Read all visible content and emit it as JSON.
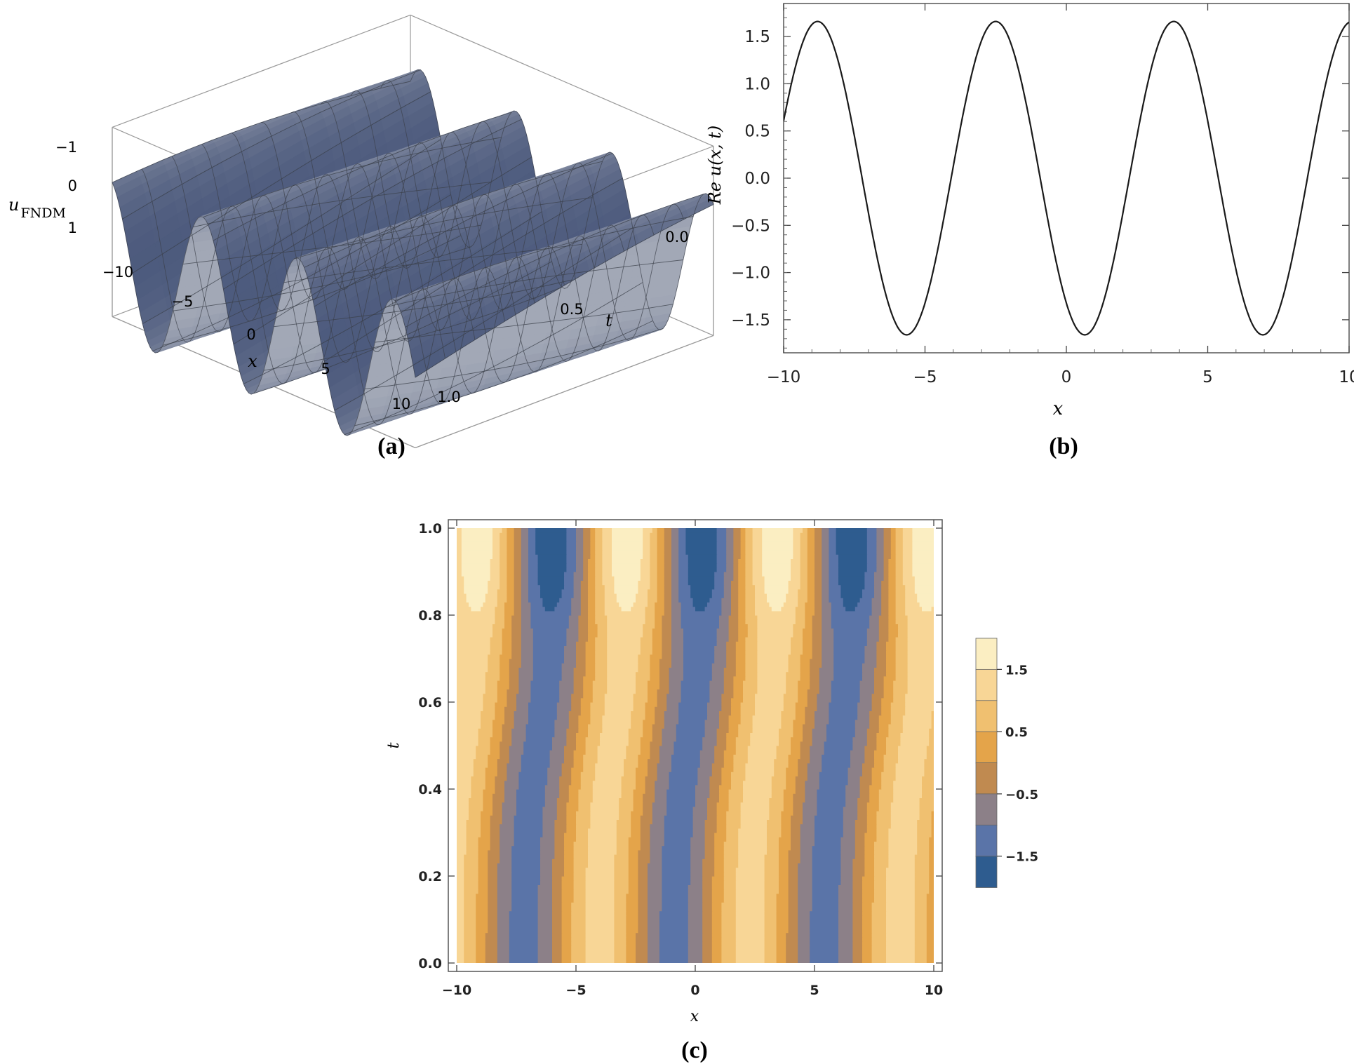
{
  "figure": {
    "captions": [
      "(a)",
      "(b)",
      "(c)"
    ]
  },
  "chart_data": [
    {
      "id": "a",
      "type": "surface3d",
      "zlabel": "u",
      "zlabel_sub": "FNDM",
      "xlabel": "x",
      "ylabel": "t",
      "x_ticks": [
        "−10",
        "−5",
        "0",
        "5",
        "10"
      ],
      "t_ticks": [
        "0.0",
        "0.5",
        "1.0"
      ],
      "z_ticks": [
        "−1",
        "0",
        "1"
      ],
      "xlim": [
        -10,
        10
      ],
      "tlim": [
        0,
        1
      ],
      "zlim": [
        -1.7,
        1.7
      ],
      "surface_color": "#8a9aa8"
    },
    {
      "id": "b",
      "type": "line",
      "xlabel": "x",
      "ylabel": "Re u(x, t)",
      "xlim": [
        -10,
        10
      ],
      "ylim": [
        -1.85,
        1.85
      ],
      "x_ticks": [
        -10,
        -5,
        0,
        5,
        10
      ],
      "x_tick_labels": [
        "−10",
        "−5",
        "0",
        "5",
        "10"
      ],
      "y_ticks": [
        1.5,
        1.0,
        0.5,
        0.0,
        -0.5,
        -1.0,
        -1.5
      ],
      "y_tick_labels": [
        "1.5",
        "1.0",
        "0.5",
        "0.0",
        "−0.5",
        "−1.0",
        "−1.5"
      ],
      "series": [
        {
          "amplitude": 1.66,
          "wavelength": 6.3,
          "first_peak_x": -8.8,
          "x": [
            -10,
            -8.8,
            -5.65,
            -2.5,
            0.65,
            3.8,
            6.95,
            10
          ],
          "y": [
            0.47,
            1.66,
            -1.66,
            1.66,
            -1.66,
            1.66,
            -1.66,
            1.6
          ],
          "color": "#1a1a1a"
        }
      ]
    },
    {
      "id": "c",
      "type": "contour",
      "xlabel": "x",
      "ylabel": "t",
      "xlim": [
        -10,
        10
      ],
      "ylim": [
        0,
        1
      ],
      "x_ticks": [
        -10,
        -5,
        0,
        5,
        10
      ],
      "x_tick_labels": [
        "−10",
        "−5",
        "0",
        "5",
        "10"
      ],
      "y_ticks": [
        0.0,
        0.2,
        0.4,
        0.6,
        0.8,
        1.0
      ],
      "y_tick_labels": [
        "0.0",
        "0.2",
        "0.4",
        "0.6",
        "0.8",
        "1.0"
      ],
      "levels": [
        -2,
        -1.5,
        -1,
        -0.5,
        0,
        0.5,
        1,
        1.5,
        2
      ],
      "level_colors": [
        "#2e5c8f",
        "#5a74a8",
        "#8c8088",
        "#c08a50",
        "#e4a44a",
        "#f0c070",
        "#f8d696",
        "#fbeec2"
      ],
      "legend_tick_labels": [
        "1.5",
        "0.5",
        "−0.5",
        "−1.5"
      ],
      "legend_tick_values": [
        1.5,
        0.5,
        -0.5,
        -1.5
      ]
    }
  ]
}
